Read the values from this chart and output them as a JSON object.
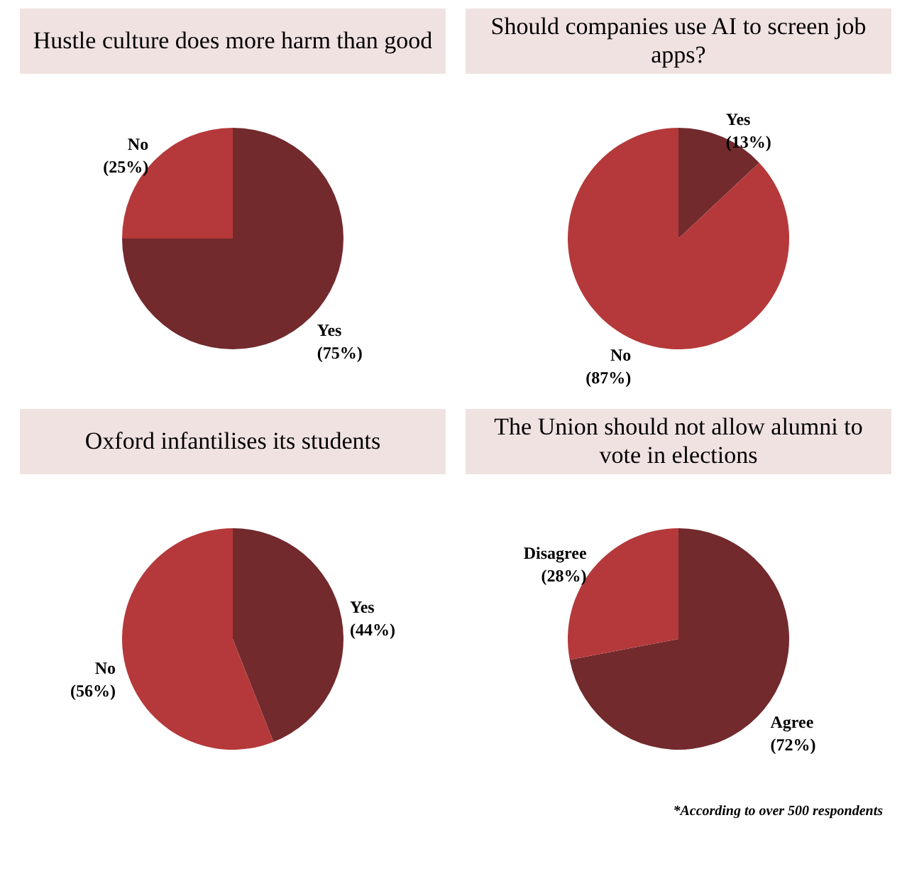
{
  "chart_data": [
    {
      "type": "pie",
      "title": "Hustle culture does more harm than good",
      "categories": [
        "Yes",
        "No"
      ],
      "values": [
        75,
        25
      ],
      "value_labels": [
        "(75%)",
        "(25%)"
      ],
      "colors": [
        "#722a2d",
        "#b5393a"
      ]
    },
    {
      "type": "pie",
      "title": "Should companies use AI to screen job apps?",
      "categories": [
        "Yes",
        "No"
      ],
      "values": [
        13,
        87
      ],
      "value_labels": [
        "(13%)",
        "(87%)"
      ],
      "colors": [
        "#722a2d",
        "#b5393a"
      ]
    },
    {
      "type": "pie",
      "title": "Oxford infantilises its students",
      "categories": [
        "Yes",
        "No"
      ],
      "values": [
        44,
        56
      ],
      "value_labels": [
        "(44%)",
        "(56%)"
      ],
      "colors": [
        "#722a2d",
        "#b5393a"
      ]
    },
    {
      "type": "pie",
      "title": "The Union should not allow alumni to vote in elections",
      "categories": [
        "Agree",
        "Disagree"
      ],
      "values": [
        72,
        28
      ],
      "value_labels": [
        "(72%)",
        "(28%)"
      ],
      "colors": [
        "#722a2d",
        "#b5393a"
      ],
      "annotations": [
        "*According to over 500 respondents"
      ]
    }
  ]
}
